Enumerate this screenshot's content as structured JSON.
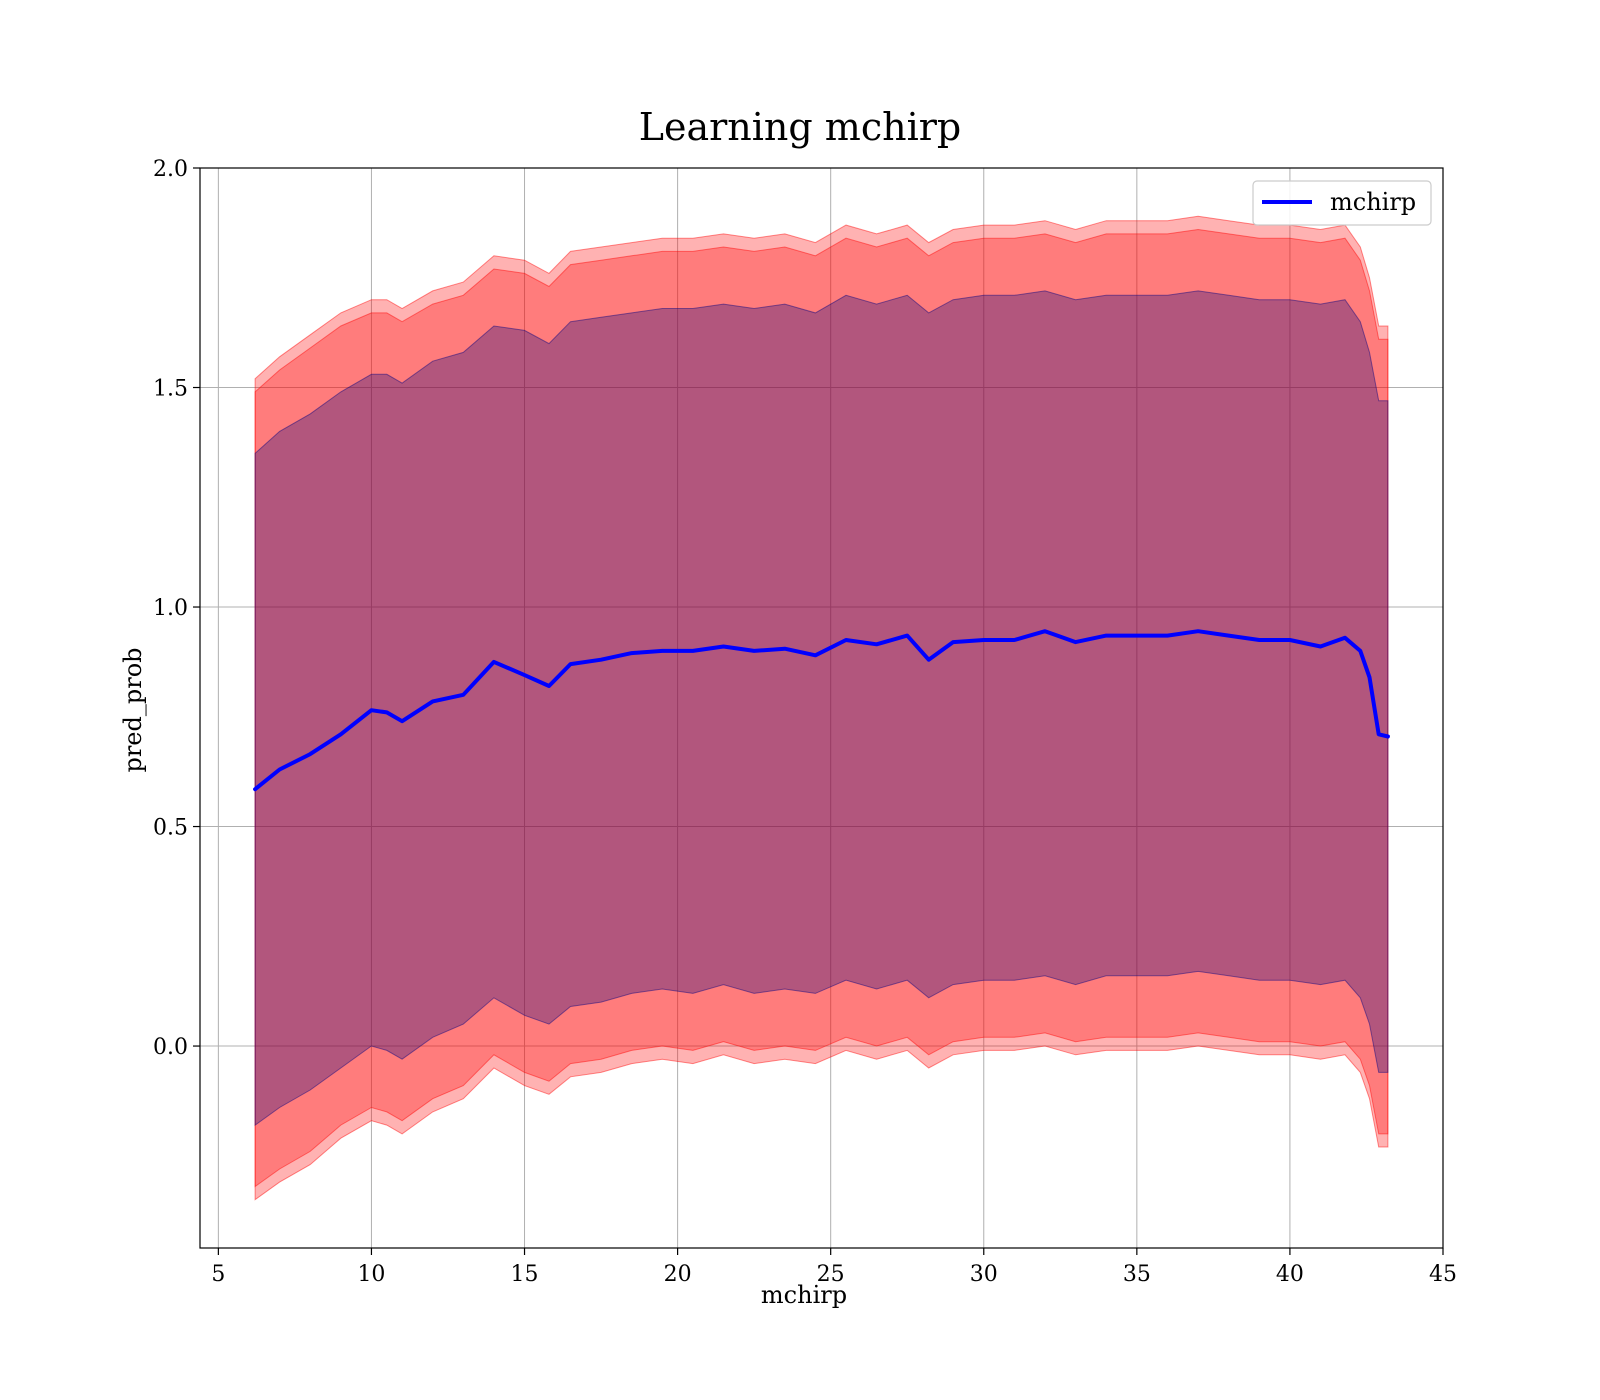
{
  "chart_data": {
    "type": "line",
    "title": "Learning mchirp",
    "xlabel": "mchirp",
    "ylabel": "pred_prob",
    "xlim": [
      4.4,
      45
    ],
    "ylim": [
      -0.46,
      2.0
    ],
    "xticks": [
      5,
      10,
      15,
      20,
      25,
      30,
      35,
      40,
      45
    ],
    "yticks": [
      0.0,
      0.5,
      1.0,
      1.5,
      2.0
    ],
    "xtick_labels": [
      "5",
      "10",
      "15",
      "20",
      "25",
      "30",
      "35",
      "40",
      "45"
    ],
    "ytick_labels": [
      "0.0",
      "0.5",
      "1.0",
      "1.5",
      "2.0"
    ],
    "grid": true,
    "legend": {
      "position": "top-right",
      "entries": [
        "mchirp"
      ]
    },
    "colors": {
      "line": "#0000ff",
      "band_outer": "#ff0000",
      "band_middle": "#ff0000",
      "band_inner": "#000080"
    },
    "series": [
      {
        "name": "mchirp",
        "x": [
          6.2,
          7,
          8,
          9,
          10,
          10.5,
          11,
          12,
          13,
          14,
          15,
          15.8,
          16.5,
          17.5,
          18.5,
          19.5,
          20.5,
          21.5,
          22.5,
          23.5,
          24.5,
          25.5,
          26.5,
          27.5,
          28.2,
          29,
          30,
          31,
          32,
          33,
          34,
          35,
          36,
          37,
          38,
          39,
          40,
          41,
          41.8,
          42.3,
          42.6,
          42.9,
          43.2
        ],
        "y": [
          0.585,
          0.63,
          0.665,
          0.71,
          0.765,
          0.76,
          0.74,
          0.785,
          0.8,
          0.875,
          0.845,
          0.82,
          0.87,
          0.88,
          0.895,
          0.9,
          0.9,
          0.91,
          0.9,
          0.905,
          0.89,
          0.925,
          0.915,
          0.935,
          0.88,
          0.92,
          0.925,
          0.925,
          0.945,
          0.92,
          0.935,
          0.935,
          0.935,
          0.945,
          0.935,
          0.925,
          0.925,
          0.91,
          0.93,
          0.9,
          0.84,
          0.71,
          0.705
        ]
      }
    ],
    "bands": [
      {
        "level": "outer",
        "upper": [
          1.52,
          1.57,
          1.62,
          1.67,
          1.7,
          1.7,
          1.68,
          1.72,
          1.74,
          1.8,
          1.79,
          1.76,
          1.81,
          1.82,
          1.83,
          1.84,
          1.84,
          1.85,
          1.84,
          1.85,
          1.83,
          1.87,
          1.85,
          1.87,
          1.83,
          1.86,
          1.87,
          1.87,
          1.88,
          1.86,
          1.88,
          1.88,
          1.88,
          1.89,
          1.88,
          1.87,
          1.87,
          1.86,
          1.87,
          1.82,
          1.75,
          1.64,
          1.64
        ],
        "lower": [
          -0.35,
          -0.31,
          -0.27,
          -0.21,
          -0.17,
          -0.18,
          -0.2,
          -0.15,
          -0.12,
          -0.05,
          -0.09,
          -0.11,
          -0.07,
          -0.06,
          -0.04,
          -0.03,
          -0.04,
          -0.02,
          -0.04,
          -0.03,
          -0.04,
          -0.01,
          -0.03,
          -0.01,
          -0.05,
          -0.02,
          -0.01,
          -0.01,
          0.0,
          -0.02,
          -0.01,
          -0.01,
          -0.01,
          0.0,
          -0.01,
          -0.02,
          -0.02,
          -0.03,
          -0.02,
          -0.06,
          -0.12,
          -0.23,
          -0.23
        ]
      },
      {
        "level": "middle",
        "upper": [
          1.49,
          1.54,
          1.59,
          1.64,
          1.67,
          1.67,
          1.65,
          1.69,
          1.71,
          1.77,
          1.76,
          1.73,
          1.78,
          1.79,
          1.8,
          1.81,
          1.81,
          1.82,
          1.81,
          1.82,
          1.8,
          1.84,
          1.82,
          1.84,
          1.8,
          1.83,
          1.84,
          1.84,
          1.85,
          1.83,
          1.85,
          1.85,
          1.85,
          1.86,
          1.85,
          1.84,
          1.84,
          1.83,
          1.84,
          1.79,
          1.72,
          1.61,
          1.61
        ],
        "lower": [
          -0.32,
          -0.28,
          -0.24,
          -0.18,
          -0.14,
          -0.15,
          -0.17,
          -0.12,
          -0.09,
          -0.02,
          -0.06,
          -0.08,
          -0.04,
          -0.03,
          -0.01,
          0.0,
          -0.01,
          0.01,
          -0.01,
          0.0,
          -0.01,
          0.02,
          0.0,
          0.02,
          -0.02,
          0.01,
          0.02,
          0.02,
          0.03,
          0.01,
          0.02,
          0.02,
          0.02,
          0.03,
          0.02,
          0.01,
          0.01,
          0.0,
          0.01,
          -0.03,
          -0.09,
          -0.2,
          -0.2
        ]
      },
      {
        "level": "inner",
        "upper": [
          1.35,
          1.4,
          1.44,
          1.49,
          1.53,
          1.53,
          1.51,
          1.56,
          1.58,
          1.64,
          1.63,
          1.6,
          1.65,
          1.66,
          1.67,
          1.68,
          1.68,
          1.69,
          1.68,
          1.69,
          1.67,
          1.71,
          1.69,
          1.71,
          1.67,
          1.7,
          1.71,
          1.71,
          1.72,
          1.7,
          1.71,
          1.71,
          1.71,
          1.72,
          1.71,
          1.7,
          1.7,
          1.69,
          1.7,
          1.65,
          1.58,
          1.47,
          1.47
        ],
        "lower": [
          -0.18,
          -0.14,
          -0.1,
          -0.05,
          0.0,
          -0.01,
          -0.03,
          0.02,
          0.05,
          0.11,
          0.07,
          0.05,
          0.09,
          0.1,
          0.12,
          0.13,
          0.12,
          0.14,
          0.12,
          0.13,
          0.12,
          0.15,
          0.13,
          0.15,
          0.11,
          0.14,
          0.15,
          0.15,
          0.16,
          0.14,
          0.16,
          0.16,
          0.16,
          0.17,
          0.16,
          0.15,
          0.15,
          0.14,
          0.15,
          0.11,
          0.05,
          -0.06,
          -0.06
        ]
      }
    ]
  }
}
